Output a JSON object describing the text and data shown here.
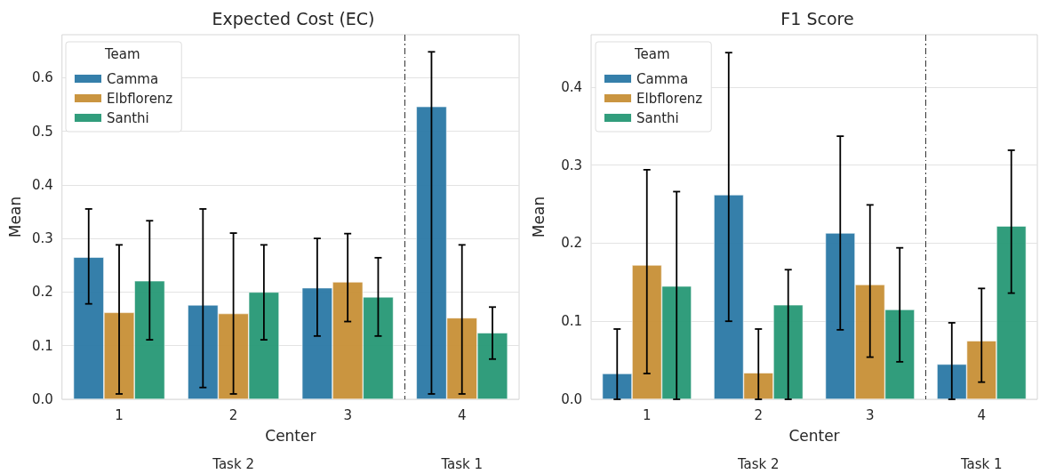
{
  "chart_data": [
    {
      "type": "bar",
      "title": "Expected Cost (EC)",
      "xlabel": "Center",
      "ylabel": "Mean",
      "legend_title": "Team",
      "categories": [
        "1",
        "2",
        "3",
        "4"
      ],
      "ylim": [
        0,
        0.68
      ],
      "yticks": [
        {
          "value": 0,
          "label": "0.0"
        },
        0.1,
        0.2,
        0.3,
        0.4,
        0.5,
        0.6
      ],
      "grid": "y",
      "legend": "top left",
      "series": [
        {
          "name": "Camma",
          "color": "#2e7ba7",
          "values": [
            0.265,
            0.176,
            0.208,
            0.546
          ],
          "errors": [
            [
              0.178,
              0.355
            ],
            [
              0.022,
              0.355
            ],
            [
              0.118,
              0.3
            ],
            [
              0.01,
              0.648
            ]
          ]
        },
        {
          "name": "Elbflorenz",
          "color": "#c8923a",
          "values": [
            0.162,
            0.16,
            0.219,
            0.152
          ],
          "errors": [
            [
              0.01,
              0.288
            ],
            [
              0.01,
              0.31
            ],
            [
              0.145,
              0.309
            ],
            [
              0.01,
              0.288
            ]
          ]
        },
        {
          "name": "Santhi",
          "color": "#2a9a78",
          "values": [
            0.221,
            0.2,
            0.191,
            0.124
          ],
          "errors": [
            [
              0.111,
              0.333
            ],
            [
              0.111,
              0.288
            ],
            [
              0.118,
              0.264
            ],
            [
              0.075,
              0.172
            ]
          ]
        }
      ],
      "annotations": [
        "Task 2",
        "Task 1"
      ]
    },
    {
      "type": "bar",
      "title": "F1 Score",
      "xlabel": "Center",
      "ylabel": "Mean",
      "legend_title": "Team",
      "categories": [
        "1",
        "2",
        "3",
        "4"
      ],
      "ylim": [
        0,
        0.467
      ],
      "yticks": [
        {
          "value": 0,
          "label": "0.0"
        },
        0.1,
        0.2,
        0.3,
        0.4
      ],
      "grid": "y",
      "legend": "top left",
      "series": [
        {
          "name": "Camma",
          "color": "#2e7ba7",
          "values": [
            0.033,
            0.262,
            0.213,
            0.045
          ],
          "errors": [
            [
              0,
              0.09
            ],
            [
              0.1,
              0.444
            ],
            [
              0.089,
              0.337
            ],
            [
              0,
              0.098
            ]
          ]
        },
        {
          "name": "Elbflorenz",
          "color": "#c8923a",
          "values": [
            0.172,
            0.034,
            0.147,
            0.075
          ],
          "errors": [
            [
              0.033,
              0.294
            ],
            [
              0,
              0.09
            ],
            [
              0.054,
              0.249
            ],
            [
              0.022,
              0.142
            ]
          ]
        },
        {
          "name": "Santhi",
          "color": "#2a9a78",
          "values": [
            0.145,
            0.121,
            0.115,
            0.222
          ],
          "errors": [
            [
              0,
              0.266
            ],
            [
              0,
              0.166
            ],
            [
              0.048,
              0.194
            ],
            [
              0.136,
              0.319
            ]
          ]
        }
      ],
      "annotations": [
        "Task 2",
        "Task 1"
      ]
    }
  ]
}
